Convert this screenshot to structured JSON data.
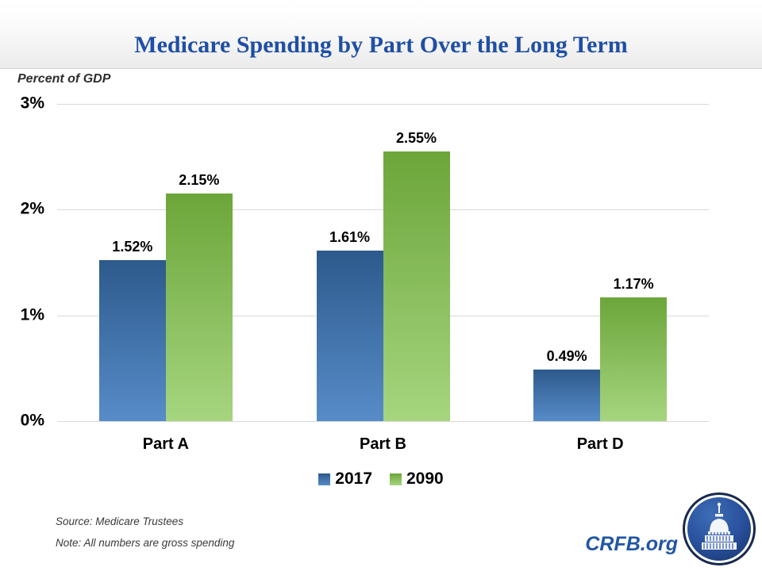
{
  "header": {
    "title": "Medicare Spending by Part Over the Long Term",
    "title_color": "#1F4FA5"
  },
  "axis_title": "Percent of GDP",
  "chart_data": {
    "type": "bar",
    "title": "Medicare Spending by Part Over the Long Term",
    "xlabel": "",
    "ylabel": "Percent of GDP",
    "ylim": [
      0,
      3
    ],
    "yticks": [
      "0%",
      "1%",
      "2%",
      "3%"
    ],
    "grid": true,
    "legend_position": "bottom",
    "categories": [
      "Part A",
      "Part B",
      "Part D"
    ],
    "series": [
      {
        "name": "2017",
        "values": [
          1.52,
          1.61,
          0.49
        ],
        "labels": [
          "1.52%",
          "1.61%",
          "0.49%"
        ],
        "color_top": "#2D5A8C",
        "color_bottom": "#578CC9"
      },
      {
        "name": "2090",
        "values": [
          2.15,
          2.55,
          1.17
        ],
        "labels": [
          "2.15%",
          "2.55%",
          "1.17%"
        ],
        "color_top": "#6CA63A",
        "color_bottom": "#A6D57F"
      }
    ]
  },
  "footer": {
    "source": "Source: Medicare Trustees",
    "note": "Note: All numbers are gross spending",
    "brand": "CRFB.org",
    "brand_color": "#2156A4"
  },
  "icons": {
    "logo": "capitol-logo"
  }
}
